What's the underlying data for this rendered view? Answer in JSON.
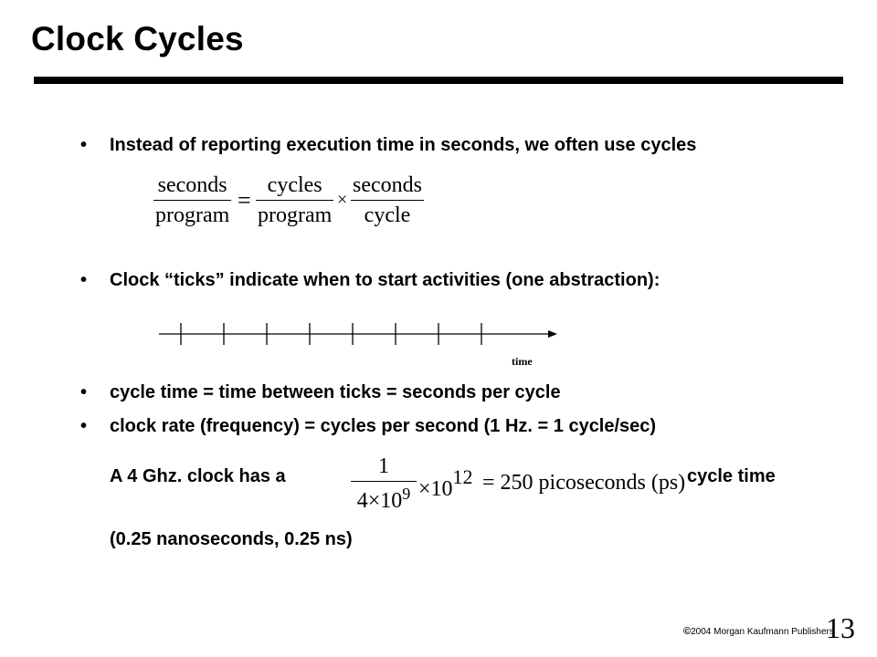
{
  "title": "Clock Cycles",
  "bullets": [
    "Instead of reporting execution time in seconds, we often use cycles",
    "Clock “ticks” indicate when to start activities (one abstraction):",
    "cycle time = time between ticks = seconds per cycle",
    "clock rate (frequency) = cycles per second  (1 Hz. = 1 cycle/sec)"
  ],
  "bullet_symbol": "•",
  "equation1": {
    "lhs_num": "seconds",
    "lhs_den": "program",
    "equals": "=",
    "f1_num": "cycles",
    "f1_den": "program",
    "times": "×",
    "f2_num": "seconds",
    "f2_den": "cycle"
  },
  "timeline": {
    "label": "time",
    "tick_count": 8
  },
  "example": {
    "prefix": "A 4 Ghz. clock has a",
    "num": "1",
    "den_base": "4×10",
    "den_exp": "9",
    "times_ten": "×10",
    "exp": "12",
    "result": "= 250 picoseconds (ps)",
    "suffix": "cycle time",
    "note": "(0.25 nanoseconds, 0.25 ns)"
  },
  "footer": {
    "copyright_symbol": "©",
    "text": "2004   Morgan Kaufmann Publishers",
    "page_number": "13"
  }
}
